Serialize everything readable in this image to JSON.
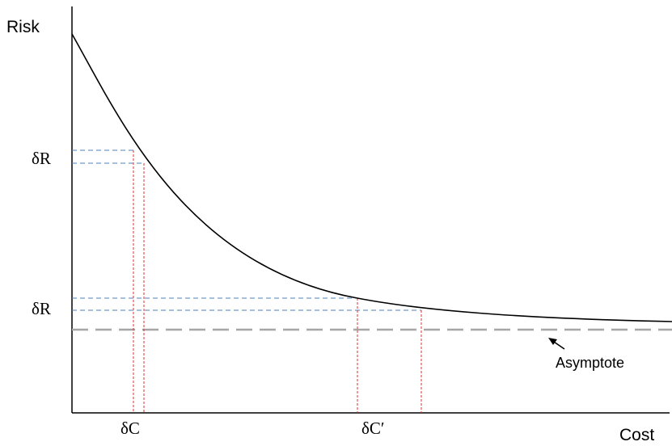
{
  "axes": {
    "y_label": "Risk",
    "x_label": "Cost"
  },
  "annotations": {
    "delta_r_upper": "δR",
    "delta_r_lower": "δR",
    "delta_c": "δC",
    "delta_c_prime": "δC′",
    "asymptote": "Asymptote"
  },
  "colors": {
    "curve": "#000000",
    "axis": "#000000",
    "risk_guides": "#4f81bd",
    "cost_guides": "#e03030",
    "asymptote": "#a6a6a6"
  }
}
